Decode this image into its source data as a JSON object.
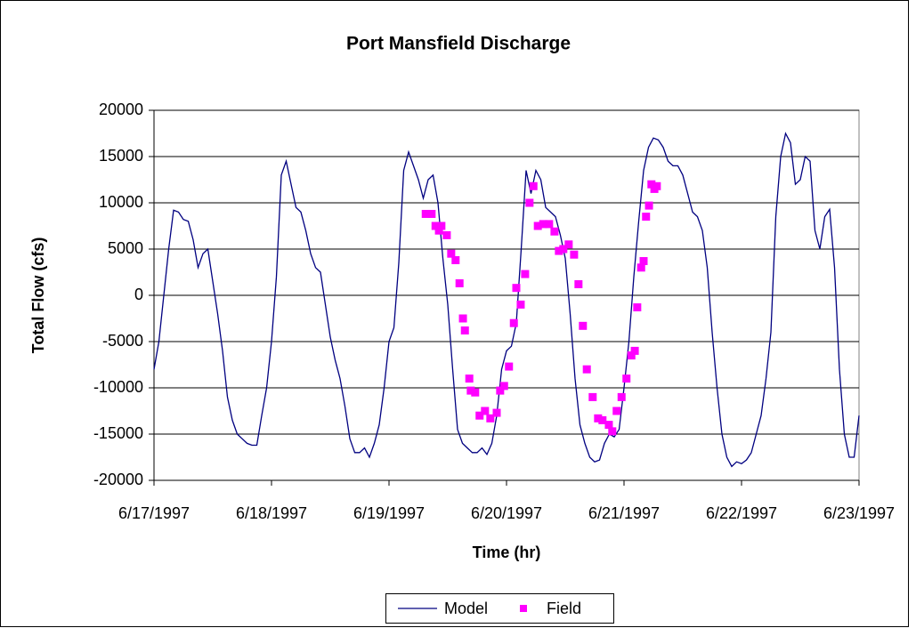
{
  "chart_data": {
    "type": "line",
    "title": "Port Mansfield Discharge",
    "x_label": "Time (hr)",
    "y_label": "Total Flow (cfs)",
    "xlim": [
      0,
      144
    ],
    "xticks": [
      {
        "value": 0,
        "label": "6/17/1997"
      },
      {
        "value": 24,
        "label": "6/18/1997"
      },
      {
        "value": 48,
        "label": "6/19/1997"
      },
      {
        "value": 72,
        "label": "6/20/1997"
      },
      {
        "value": 96,
        "label": "6/21/1997"
      },
      {
        "value": 120,
        "label": "6/22/1997"
      },
      {
        "value": 144,
        "label": "6/23/1997"
      }
    ],
    "ylim": [
      -20000,
      20000
    ],
    "yticks": [
      -20000,
      -15000,
      -10000,
      -5000,
      0,
      5000,
      10000,
      15000,
      20000
    ],
    "grid": true,
    "legend": "bottom",
    "series": [
      {
        "name": "Model",
        "color": "#000080",
        "mark": "line",
        "x": [
          0,
          1,
          2,
          3,
          4,
          5,
          6,
          7,
          8,
          9,
          10,
          11,
          12,
          13,
          14,
          15,
          16,
          17,
          18,
          19,
          20,
          21,
          22,
          23,
          24,
          25,
          26,
          27,
          28,
          29,
          30,
          31,
          32,
          33,
          34,
          35,
          36,
          37,
          38,
          39,
          40,
          41,
          42,
          43,
          44,
          45,
          46,
          47,
          48,
          49,
          50,
          51,
          52,
          53,
          54,
          55,
          56,
          57,
          58,
          59,
          60,
          61,
          62,
          63,
          64,
          65,
          66,
          67,
          68,
          69,
          70,
          71,
          72,
          73,
          74,
          75,
          76,
          77,
          78,
          79,
          80,
          81,
          82,
          83,
          84,
          85,
          86,
          87,
          88,
          89,
          90,
          91,
          92,
          93,
          94,
          95,
          96,
          97,
          98,
          99,
          100,
          101,
          102,
          103,
          104,
          105,
          106,
          107,
          108,
          109,
          110,
          111,
          112,
          113,
          114,
          115,
          116,
          117,
          118,
          119,
          120,
          121,
          122,
          123,
          124,
          125,
          126,
          127,
          128,
          129,
          130,
          131,
          132,
          133,
          134,
          135,
          136,
          137,
          138,
          139,
          140,
          141,
          142,
          143,
          144
        ],
        "values": [
          -8000,
          -5000,
          0,
          5000,
          9200,
          9000,
          8200,
          8000,
          6000,
          3000,
          4500,
          5000,
          1500,
          -2000,
          -6000,
          -11000,
          -13500,
          -15000,
          -15500,
          -16000,
          -16200,
          -16200,
          -13000,
          -10000,
          -5000,
          2000,
          13000,
          14500,
          12000,
          9500,
          9000,
          7000,
          4500,
          3000,
          2500,
          -1000,
          -4500,
          -7000,
          -9000,
          -12000,
          -15500,
          -17000,
          -17000,
          -16500,
          -17500,
          -16000,
          -14000,
          -10000,
          -5000,
          -3500,
          3500,
          13500,
          15500,
          14000,
          12500,
          10500,
          12500,
          13000,
          10000,
          4000,
          -1000,
          -8000,
          -14500,
          -16000,
          -16500,
          -17000,
          -17000,
          -16500,
          -17200,
          -16000,
          -13000,
          -8000,
          -6000,
          -5500,
          -3000,
          5000,
          13500,
          11000,
          13500,
          12500,
          9500,
          9000,
          8500,
          6500,
          4000,
          -2000,
          -9000,
          -14000,
          -16000,
          -17500,
          -18000,
          -17800,
          -16000,
          -15000,
          -15300,
          -14500,
          -10000,
          -5000,
          2000,
          8000,
          13500,
          16000,
          17000,
          16800,
          16000,
          14500,
          14000,
          14000,
          13000,
          11000,
          9000,
          8500,
          7000,
          3000,
          -4000,
          -10000,
          -15000,
          -17500,
          -18500,
          -18000,
          -18200,
          -17800,
          -17000,
          -15000,
          -13000,
          -9000,
          -4000,
          8500,
          15000,
          17500,
          16500,
          12000,
          12500,
          15000,
          14500,
          7000,
          5000,
          8500,
          9300,
          3000,
          -8000,
          -15000,
          -17500,
          -17500,
          -13000
        ]
      },
      {
        "name": "Field",
        "color": "#ff00ff",
        "mark": "square",
        "x": [
          55.5,
          56.7,
          57.5,
          58.2,
          58.7,
          59.8,
          60.7,
          61.6,
          62.4,
          63.1,
          63.5,
          64.4,
          64.7,
          65.6,
          66.5,
          67.6,
          68.7,
          70.0,
          70.7,
          71.5,
          72.5,
          73.5,
          74.0,
          74.9,
          75.8,
          76.7,
          77.5,
          78.4,
          79.5,
          80.7,
          81.8,
          82.7,
          83.6,
          84.7,
          85.8,
          86.7,
          87.6,
          88.4,
          89.6,
          90.7,
          91.6,
          92.9,
          93.6,
          94.5,
          95.5,
          96.5,
          97.5,
          98.2,
          98.7,
          99.5,
          100.0,
          100.5,
          101.1,
          101.6,
          102.2,
          102.7
        ],
        "values": [
          8800,
          8800,
          7500,
          7000,
          7500,
          6500,
          4500,
          3800,
          1300,
          -2500,
          -3800,
          -9000,
          -10300,
          -10500,
          -13000,
          -12500,
          -13300,
          -12700,
          -10300,
          -9800,
          -7700,
          -3000,
          800,
          -1000,
          2300,
          10000,
          11800,
          7500,
          7700,
          7700,
          6900,
          4800,
          5000,
          5500,
          4400,
          1200,
          -3300,
          -8000,
          -11000,
          -13300,
          -13500,
          -14000,
          -14700,
          -12500,
          -11000,
          -9000,
          -6500,
          -6000,
          -1300,
          3000,
          3700,
          8500,
          9700,
          12000,
          11500,
          11800
        ]
      }
    ]
  }
}
